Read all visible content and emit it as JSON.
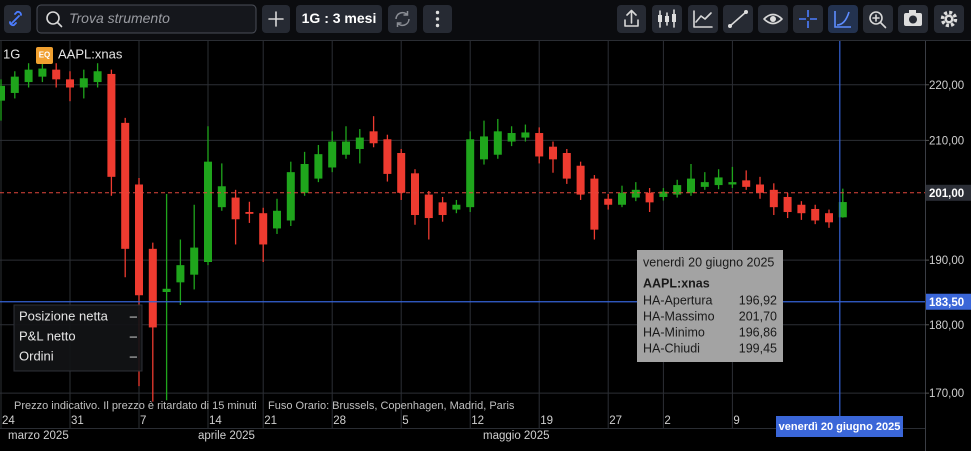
{
  "toolbar": {
    "search_placeholder": "Trova strumento",
    "period": "1G : 3 mesi"
  },
  "chart": {
    "type": "candlestick",
    "interval": "1G",
    "badge": "EQ",
    "symbol": "AAPL:xnas",
    "log_scale": true,
    "grid": true,
    "ylim": [
      167.2,
      228.2
    ],
    "yticks": [
      {
        "value": 220,
        "label": "220,00"
      },
      {
        "value": 210,
        "label": "210,00"
      },
      {
        "value": 190,
        "label": "190,00"
      },
      {
        "value": 180,
        "label": "180,00"
      },
      {
        "value": 170,
        "label": "170,00"
      }
    ],
    "x_labels": [
      "24",
      "31",
      "7",
      "14",
      "21",
      "28",
      "5",
      "12",
      "19",
      "27",
      "2",
      "9"
    ],
    "month_labels": [
      "marzo 2025",
      "aprile 2025",
      "maggio 2025"
    ],
    "up_color": "#1fa51c",
    "down_color": "#ee3b30",
    "candles": [
      [
        217.1,
        221.0,
        213.5,
        219.8
      ],
      [
        218.5,
        222.5,
        217.5,
        221.5
      ],
      [
        220.5,
        224.0,
        219.5,
        222.8
      ],
      [
        221.5,
        224.5,
        220.5,
        223.0
      ],
      [
        222.8,
        224.0,
        219.5,
        221.0
      ],
      [
        221.0,
        222.5,
        217.0,
        219.5
      ],
      [
        219.5,
        222.8,
        217.5,
        221.2
      ],
      [
        220.5,
        224.0,
        219.5,
        222.5
      ],
      [
        222.0,
        222.8,
        200.5,
        203.7
      ],
      [
        213.1,
        214.0,
        187.3,
        191.8
      ],
      [
        202.4,
        203.5,
        171.0,
        184.5
      ],
      [
        191.8,
        192.8,
        168.8,
        179.6
      ],
      [
        185.0,
        200.8,
        169.0,
        185.5
      ],
      [
        186.5,
        193.3,
        183.0,
        189.2
      ],
      [
        187.7,
        199.0,
        185.4,
        192.0
      ],
      [
        189.7,
        212.5,
        189.2,
        206.3
      ],
      [
        198.6,
        206.0,
        198.0,
        202.1
      ],
      [
        200.2,
        201.5,
        192.5,
        196.6
      ],
      [
        197.8,
        199.5,
        196.0,
        197.5
      ],
      [
        197.6,
        198.5,
        189.7,
        192.5
      ],
      [
        195.1,
        200.0,
        194.2,
        198.0
      ],
      [
        196.4,
        206.3,
        195.5,
        204.5
      ],
      [
        201.0,
        208.0,
        200.5,
        205.9
      ],
      [
        203.4,
        209.2,
        202.8,
        207.6
      ],
      [
        205.3,
        211.6,
        204.5,
        209.8
      ],
      [
        207.5,
        212.5,
        206.8,
        209.8
      ],
      [
        208.5,
        212.0,
        206.0,
        210.5
      ],
      [
        211.6,
        214.3,
        208.8,
        209.5
      ],
      [
        210.2,
        211.0,
        202.9,
        204.2
      ],
      [
        207.8,
        208.5,
        199.8,
        201.0
      ],
      [
        204.3,
        205.0,
        195.7,
        197.3
      ],
      [
        200.7,
        201.3,
        193.3,
        196.8
      ],
      [
        199.4,
        200.3,
        196.2,
        197.3
      ],
      [
        198.2,
        199.8,
        197.6,
        199.0
      ],
      [
        198.6,
        211.6,
        197.8,
        210.2
      ],
      [
        206.7,
        213.5,
        205.8,
        210.7
      ],
      [
        207.5,
        213.8,
        206.8,
        211.6
      ],
      [
        209.8,
        212.5,
        209.0,
        211.3
      ],
      [
        210.5,
        212.8,
        209.8,
        211.4
      ],
      [
        211.3,
        212.3,
        206.0,
        207.2
      ],
      [
        208.9,
        209.8,
        204.4,
        206.7
      ],
      [
        207.8,
        208.5,
        202.5,
        203.4
      ],
      [
        205.6,
        206.3,
        199.8,
        200.7
      ],
      [
        203.4,
        204.0,
        193.3,
        194.9
      ],
      [
        200.0,
        200.8,
        198.2,
        199.0
      ],
      [
        199.0,
        202.2,
        198.6,
        201.0
      ],
      [
        200.2,
        202.8,
        199.6,
        201.5
      ],
      [
        201.0,
        201.8,
        197.8,
        199.4
      ],
      [
        200.3,
        201.8,
        199.7,
        201.2
      ],
      [
        200.7,
        203.2,
        200.2,
        202.3
      ],
      [
        201.0,
        205.9,
        200.5,
        203.4
      ],
      [
        202.0,
        204.5,
        201.5,
        202.8
      ],
      [
        202.3,
        205.0,
        201.6,
        203.6
      ],
      [
        202.4,
        205.4,
        201.8,
        202.8
      ],
      [
        203.1,
        204.8,
        201.5,
        202.0
      ],
      [
        202.4,
        203.7,
        200.0,
        201.0
      ],
      [
        201.5,
        202.6,
        197.3,
        198.6
      ],
      [
        200.3,
        201.0,
        196.8,
        197.8
      ],
      [
        199.0,
        199.6,
        196.5,
        197.6
      ],
      [
        198.3,
        199.0,
        195.8,
        196.4
      ],
      [
        197.6,
        198.2,
        195.2,
        196.1
      ],
      [
        196.92,
        201.7,
        196.86,
        199.45
      ]
    ],
    "last_price": {
      "value": 201,
      "label": "201,00"
    },
    "crosshair": {
      "value": 183.5,
      "label": "183,50",
      "date": "venerdì 20 giugno 2025"
    }
  },
  "tooltip": {
    "date": "venerdì 20 giugno 2025",
    "symbol": "AAPL:xnas",
    "rows": [
      {
        "label": "HA-Apertura",
        "value": "196,92"
      },
      {
        "label": "HA-Massimo",
        "value": "201,70"
      },
      {
        "label": "HA-Minimo",
        "value": "196,86"
      },
      {
        "label": "HA-Chiudi",
        "value": "199,45"
      }
    ]
  },
  "position_panel": {
    "rows": [
      {
        "label": "Posizione netta",
        "value": "–"
      },
      {
        "label": "P&L netto",
        "value": "–"
      },
      {
        "label": "Ordini",
        "value": "–"
      }
    ]
  },
  "footer": {
    "delay_note": "Prezzo indicativo. Il prezzo è ritardato di 15 minuti",
    "timezone": "Fuso Orario: Brussels, Copenhagen, Madrid, Paris"
  }
}
